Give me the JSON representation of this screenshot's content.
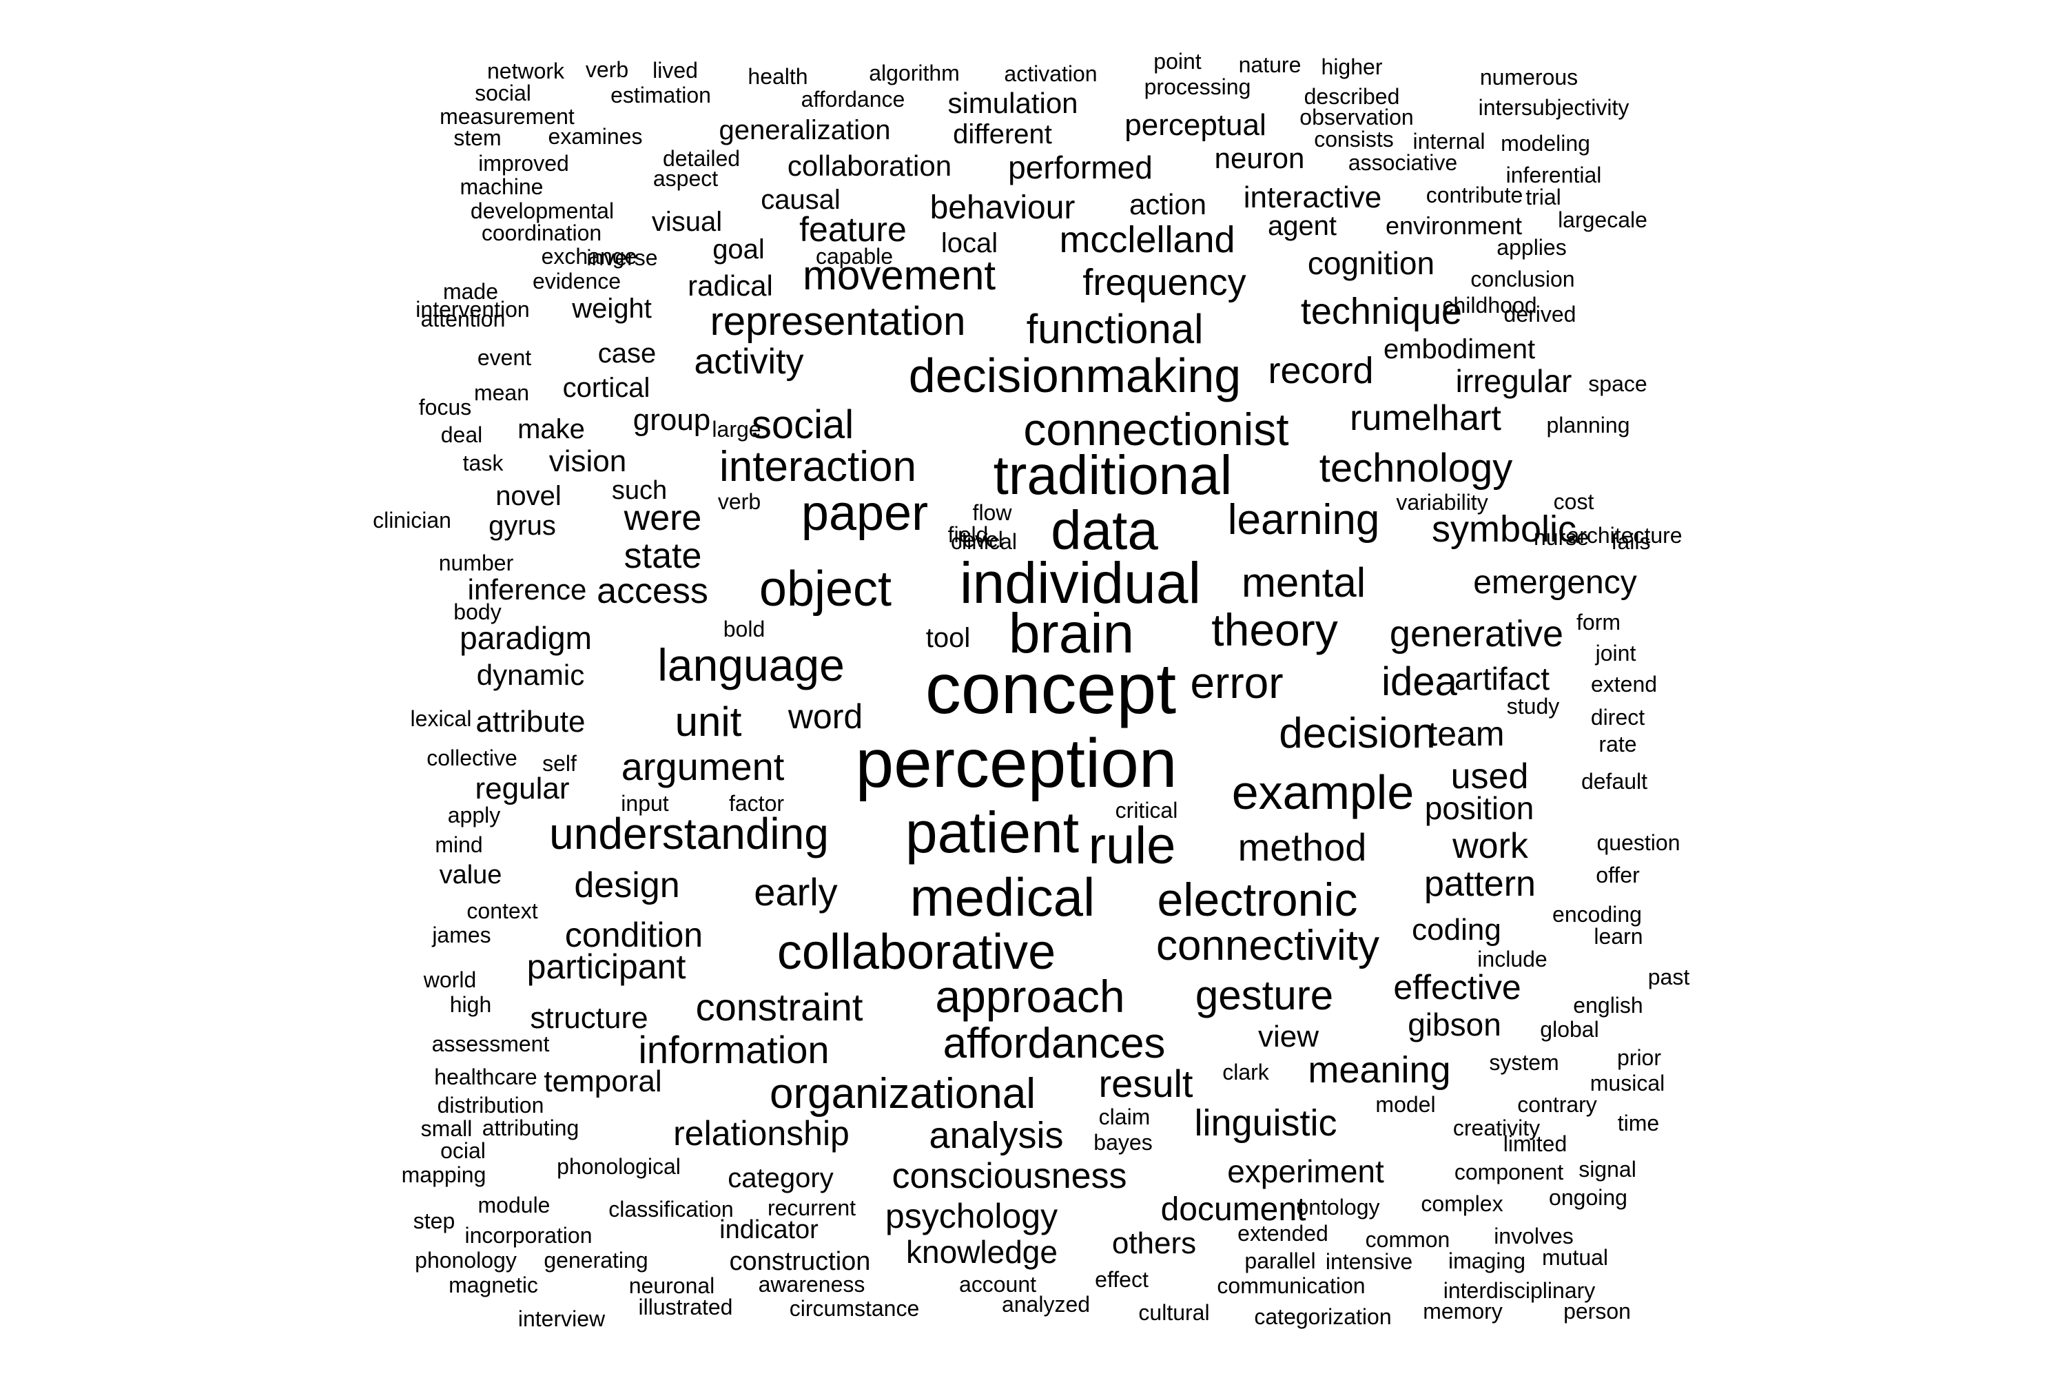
{
  "colors": {
    "background": "#ffffff",
    "text": "#000000"
  },
  "words": [
    "concept",
    "perception",
    "brain",
    "individual",
    "patient",
    "medical",
    "traditional",
    "data",
    "paper",
    "object",
    "rule",
    "collaborative",
    "decisionmaking",
    "connectionist",
    "electronic",
    "language",
    "theory",
    "example",
    "approach",
    "learning",
    "error",
    "interaction",
    "mental",
    "decision",
    "idea",
    "understanding",
    "organizational",
    "affordances",
    "technology",
    "connectivity",
    "representation",
    "gesture",
    "functional",
    "movement",
    "social",
    "argument",
    "unit",
    "result",
    "frequency",
    "technique",
    "generative",
    "constraint",
    "linguistic",
    "meaning",
    "method",
    "record",
    "state",
    "access",
    "information",
    "mcclelland",
    "rumelhart",
    "symbolic",
    "emergency",
    "early",
    "design",
    "pattern",
    "participant",
    "condition",
    "relationship",
    "analysis",
    "consciousness",
    "psychology",
    "knowledge",
    "activity",
    "behaviour",
    "feature",
    "word",
    "team",
    "used",
    "position",
    "work",
    "effective",
    "document",
    "experiment",
    "others",
    "coding",
    "gibson",
    "temporal",
    "structure",
    "were",
    "vision",
    "paradigm",
    "dynamic",
    "inference",
    "attribute",
    "regular",
    "group",
    "cognition",
    "interactive",
    "perceptual",
    "simulation",
    "collaboration",
    "performed",
    "generalization",
    "different",
    "neuron",
    "action",
    "agent",
    "environment",
    "embodiment",
    "irregular",
    "view",
    "artifact",
    "category",
    "indicator",
    "construction",
    "make",
    "novel",
    "gyrus",
    "such",
    "weight",
    "cortical",
    "case",
    "radical",
    "goal",
    "visual",
    "causal",
    "local",
    "tool",
    "value",
    "network",
    "verb",
    "lived",
    "health",
    "algorithm",
    "activation",
    "point",
    "nature",
    "higher",
    "numerous",
    "social",
    "estimation",
    "affordance",
    "processing",
    "described",
    "intersubjectivity",
    "measurement",
    "observation",
    "stem",
    "examines",
    "consists",
    "internal",
    "modeling",
    "improved",
    "detailed",
    "aspect",
    "associative",
    "inferential",
    "machine",
    "contribute",
    "trial",
    "developmental",
    "largecale",
    "coordination",
    "exchange",
    "inverse",
    "applies",
    "capable",
    "made",
    "conclusion",
    "intervention",
    "evidence",
    "childhood",
    "derived",
    "attention",
    "event",
    "mean",
    "space",
    "focus",
    "large",
    "planning",
    "deal",
    "task",
    "verb",
    "variability",
    "flow",
    "cost",
    "clinician",
    "field",
    "nurse",
    "level",
    "fails",
    "number",
    "clinical",
    "architecture",
    "body",
    "bold",
    "form",
    "joint",
    "extend",
    "lexical",
    "study",
    "direct",
    "rate",
    "collective",
    "self",
    "default",
    "input",
    "factor",
    "apply",
    "critical",
    "mind",
    "question",
    "offer",
    "context",
    "encoding",
    "james",
    "learn",
    "include",
    "world",
    "past",
    "high",
    "english",
    "assessment",
    "global",
    "clark",
    "system",
    "prior",
    "healthcare",
    "musical",
    "distribution",
    "model",
    "contrary",
    "claim",
    "small",
    "attributing",
    "creativity",
    "time",
    "bayes",
    "ocial",
    "limited",
    "mapping",
    "phonological",
    "component",
    "signal",
    "step",
    "module",
    "classification",
    "recurrent",
    "ontology",
    "complex",
    "ongoing",
    "incorporation",
    "extended",
    "common",
    "involves",
    "phonology",
    "generating",
    "parallel",
    "intensive",
    "imaging",
    "mutual",
    "magnetic",
    "neuronal",
    "awareness",
    "account",
    "effect",
    "communication",
    "interdisciplinary",
    "interview",
    "illustrated",
    "circumstance",
    "analyzed",
    "cultural",
    "categorization",
    "memory",
    "person"
  ]
}
